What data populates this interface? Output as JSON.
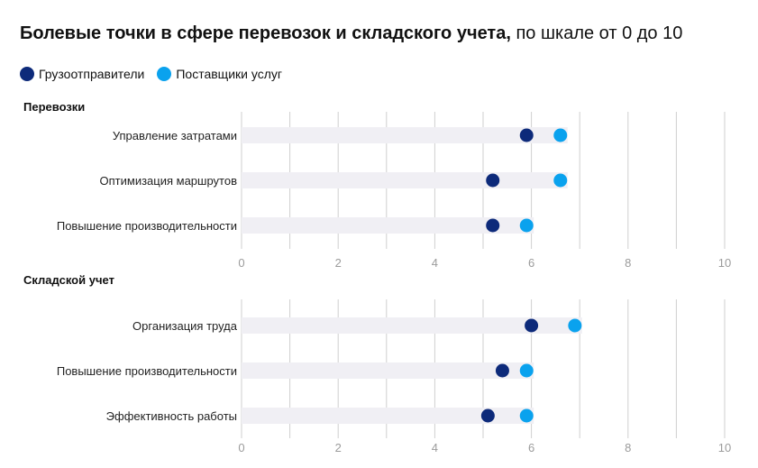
{
  "title": {
    "bold": "Болевые точки в сфере перевозок и складского учета,",
    "regular": " по шкале от 0 до 10"
  },
  "colors": {
    "shippers": "#0d2a7a",
    "providers": "#0aa2ee",
    "band": "#f0eff4",
    "grid": "#cfcfcf",
    "axis_text": "#9b9b9b"
  },
  "chart_data": {
    "type": "dot",
    "xlim": [
      0,
      10
    ],
    "x_ticks": [
      "0",
      "2",
      "4",
      "6",
      "8",
      "10"
    ],
    "series": [
      {
        "name": "Грузоотправители",
        "color": "#0d2a7a"
      },
      {
        "name": "Поставщики услуг",
        "color": "#0aa2ee"
      }
    ],
    "panels": [
      {
        "title": "Перевозки",
        "categories": [
          "Управление затратами",
          "Оптимизация маршрутов",
          "Повышение производительности"
        ],
        "shippers": [
          5.9,
          5.2,
          5.2
        ],
        "providers": [
          6.6,
          6.6,
          5.9
        ]
      },
      {
        "title": "Складской учет",
        "categories": [
          "Организация труда",
          "Повышение производительности",
          "Эффективность работы"
        ],
        "shippers": [
          6.0,
          5.4,
          5.1
        ],
        "providers": [
          6.9,
          5.9,
          5.9
        ]
      }
    ]
  }
}
